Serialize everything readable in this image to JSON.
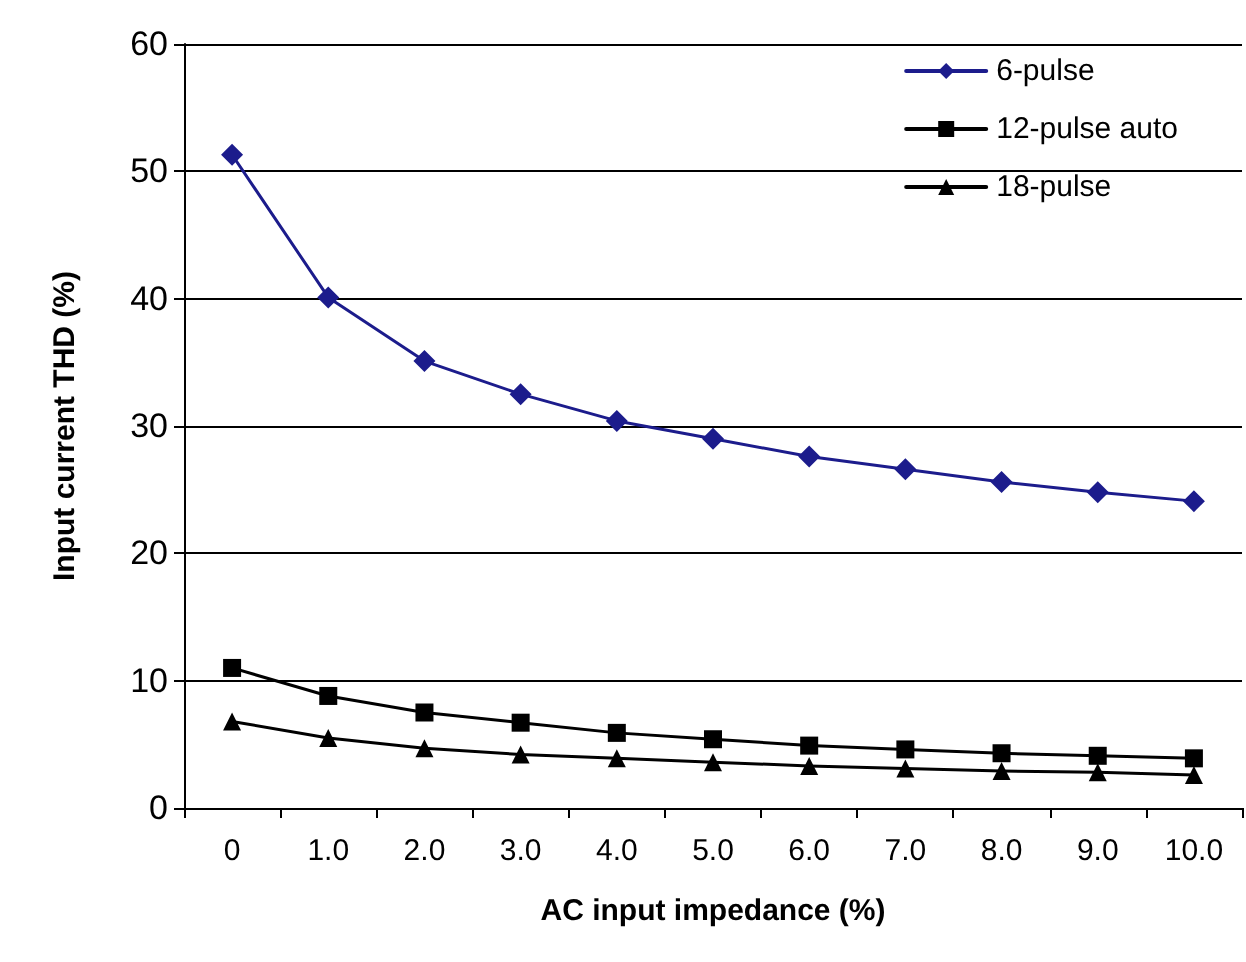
{
  "chart_data": {
    "type": "line",
    "xlabel": "AC input impedance (%)",
    "ylabel": "Input current THD (%)",
    "categories": [
      "0",
      "1.0",
      "2.0",
      "3.0",
      "4.0",
      "5.0",
      "6.0",
      "7.0",
      "8.0",
      "9.0",
      "10.0"
    ],
    "series": [
      {
        "name": "6-pulse",
        "color": "#1c1c8c",
        "marker": "diamond",
        "values": [
          51.3,
          40.1,
          35.1,
          32.5,
          30.4,
          29.0,
          27.6,
          26.6,
          25.6,
          24.8,
          24.1
        ]
      },
      {
        "name": "12-pulse auto",
        "color": "#000000",
        "marker": "square",
        "values": [
          11.0,
          8.8,
          7.5,
          6.7,
          5.9,
          5.4,
          4.9,
          4.6,
          4.3,
          4.1,
          3.9
        ]
      },
      {
        "name": "18-pulse",
        "color": "#000000",
        "marker": "triangle",
        "values": [
          6.8,
          5.5,
          4.7,
          4.2,
          3.9,
          3.6,
          3.3,
          3.1,
          2.9,
          2.8,
          2.6
        ]
      }
    ],
    "ylim": [
      0,
      60
    ],
    "yticks": [
      0,
      10,
      20,
      30,
      40,
      50,
      60
    ],
    "grid": "y",
    "legend": "top right",
    "line_style": "solid"
  }
}
